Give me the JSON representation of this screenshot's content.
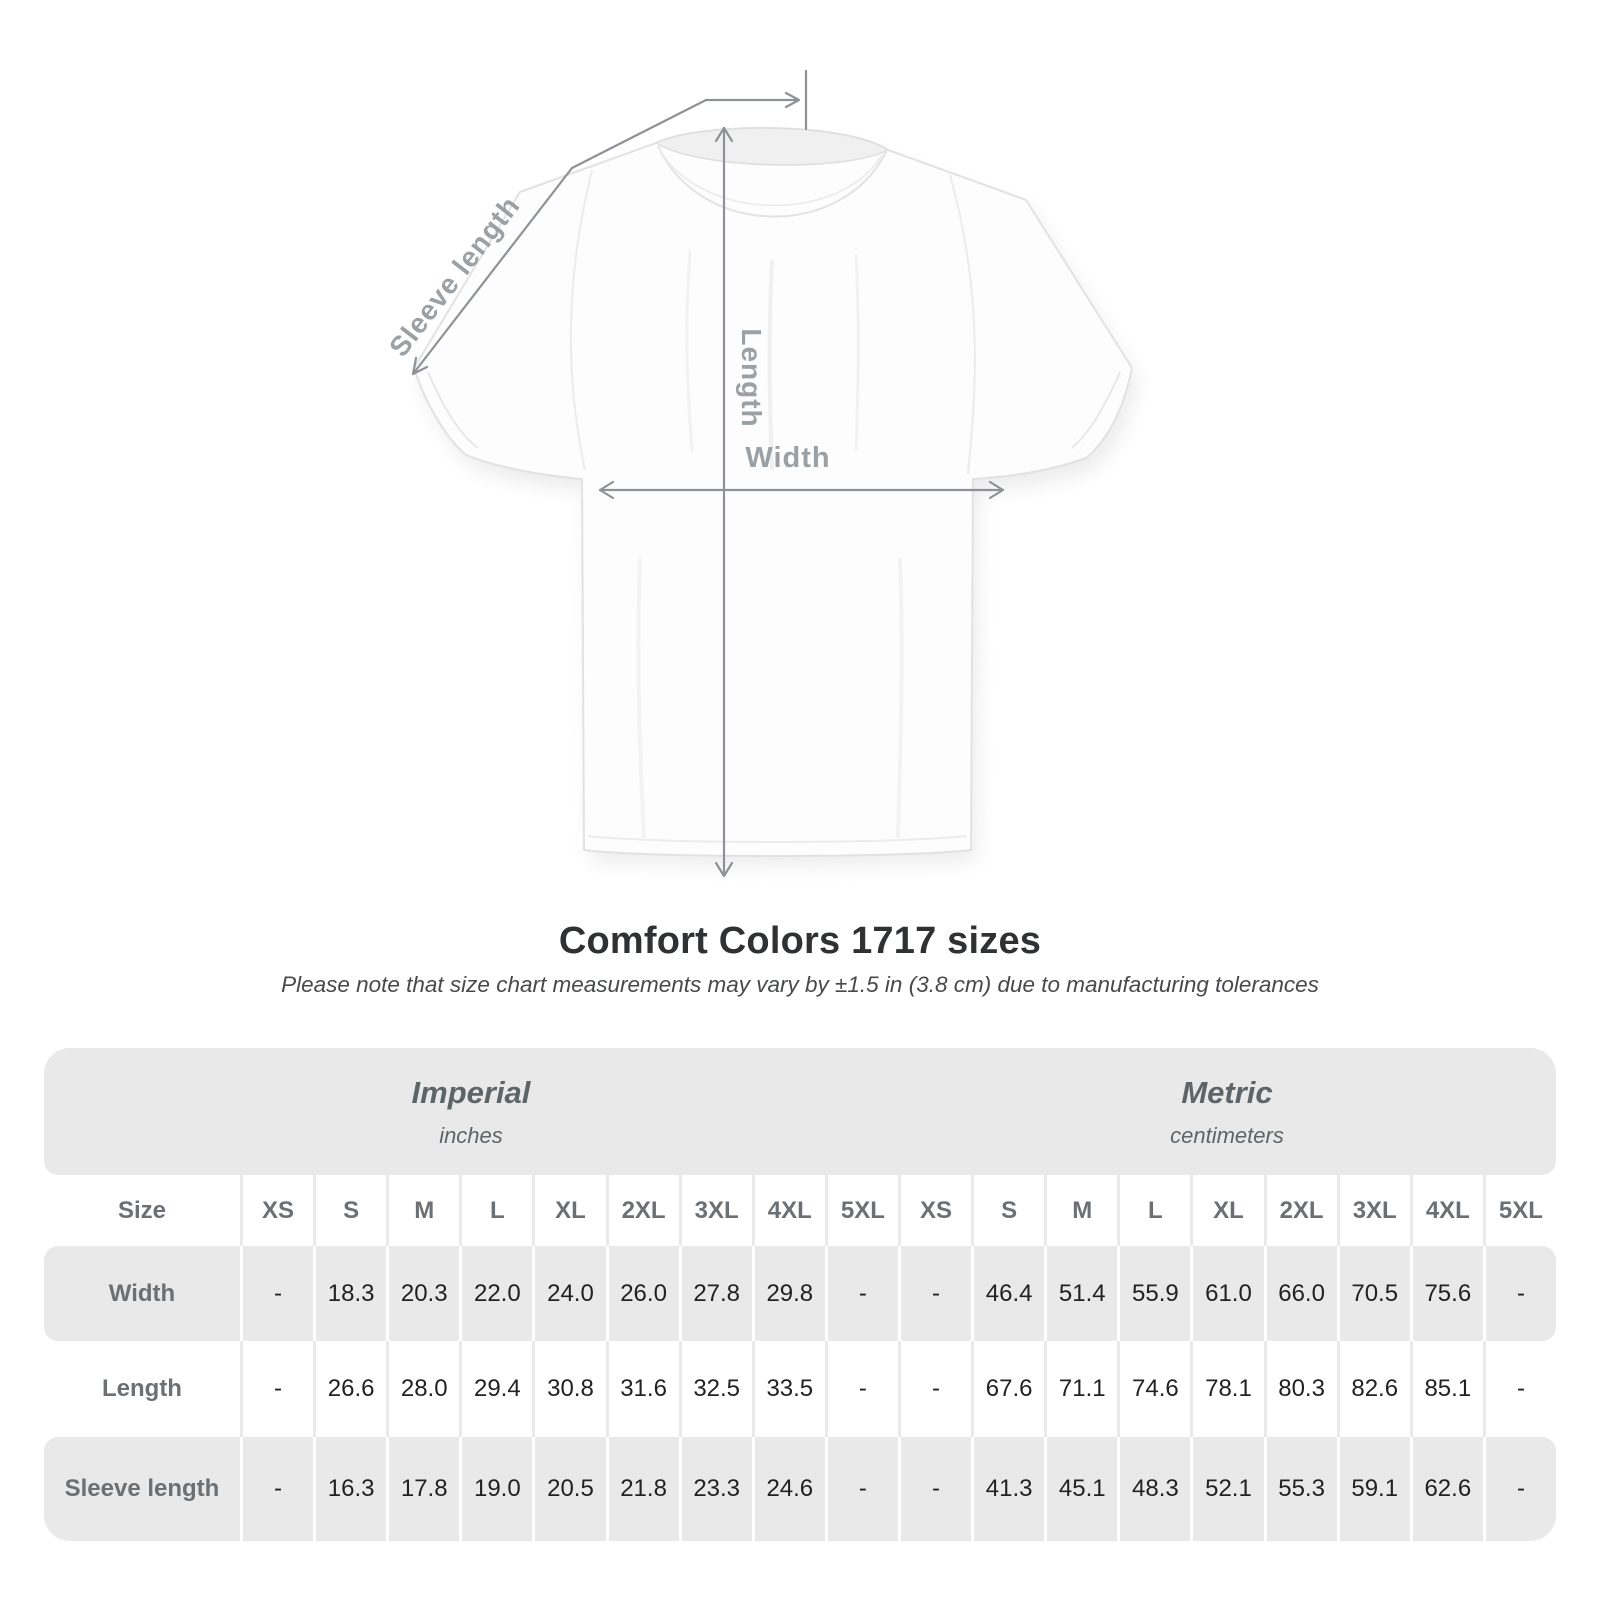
{
  "title": "Comfort Colors 1717 sizes",
  "subtitle": "Please note that size chart measurements may vary by ±1.5 in (3.8 cm) due to manufacturing tolerances",
  "diagram": {
    "sleeve_label": "Sleeve length",
    "length_label": "Length",
    "width_label": "Width"
  },
  "table": {
    "sections": [
      {
        "name": "Imperial",
        "unit": "inches"
      },
      {
        "name": "Metric",
        "unit": "centimeters"
      }
    ],
    "size_header": "Size",
    "columns": [
      "XS",
      "S",
      "M",
      "L",
      "XL",
      "2XL",
      "3XL",
      "4XL",
      "5XL",
      "XS",
      "S",
      "M",
      "L",
      "XL",
      "2XL",
      "3XL",
      "4XL",
      "5XL"
    ],
    "rows": [
      {
        "label": "Width",
        "values": [
          "-",
          "18.3",
          "20.3",
          "22.0",
          "24.0",
          "26.0",
          "27.8",
          "29.8",
          "-",
          "-",
          "46.4",
          "51.4",
          "55.9",
          "61.0",
          "66.0",
          "70.5",
          "75.6",
          "-"
        ]
      },
      {
        "label": "Length",
        "values": [
          "-",
          "26.6",
          "28.0",
          "29.4",
          "30.8",
          "31.6",
          "32.5",
          "33.5",
          "-",
          "-",
          "67.6",
          "71.1",
          "74.6",
          "78.1",
          "80.3",
          "82.6",
          "85.1",
          "-"
        ]
      },
      {
        "label": "Sleeve length",
        "values": [
          "-",
          "16.3",
          "17.8",
          "19.0",
          "20.5",
          "21.8",
          "23.3",
          "24.6",
          "-",
          "-",
          "41.3",
          "45.1",
          "48.3",
          "52.1",
          "55.3",
          "59.1",
          "62.6",
          "-"
        ]
      }
    ]
  },
  "colors": {
    "band": "#e9e9e9",
    "sep": "#e9e9e9",
    "slate": "#6b7074",
    "slate2": "#5d6569",
    "ink": "#222222",
    "ink-title": "#2f3133",
    "ink-note": "#48494b",
    "labelgray": "#9aa0a3",
    "measure": "#8e9296",
    "shirt-outline": "#e2e2e2"
  }
}
